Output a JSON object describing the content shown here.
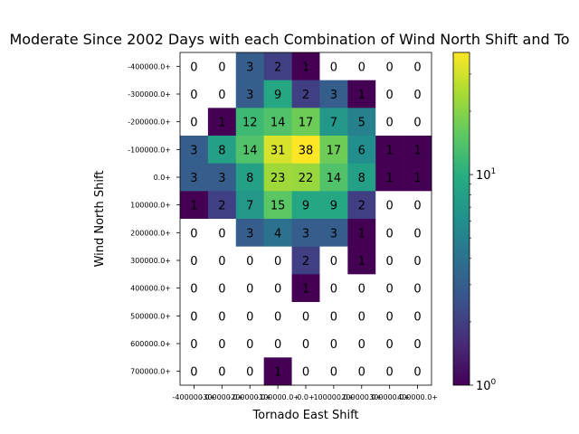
{
  "chart_data": {
    "type": "heatmap",
    "title": "Moderate Since 2002 Days with each Combination of Wind North Shift and To",
    "xlabel": "Tornado East Shift",
    "ylabel": "Wind North Shift",
    "x_categories": [
      "-400000.0+",
      "-300000.0+",
      "-200000.0+",
      "-100000.0+",
      "0.0+",
      "100000.0+",
      "200000.0+",
      "300000.0+",
      "400000.0+"
    ],
    "y_categories": [
      "-400000.0+",
      "-300000.0+",
      "-200000.0+",
      "-100000.0+",
      "0.0+",
      "100000.0+",
      "200000.0+",
      "300000.0+",
      "400000.0+",
      "500000.0+",
      "600000.0+",
      "700000.0+"
    ],
    "values": [
      [
        0,
        0,
        3,
        2,
        1,
        0,
        0,
        0,
        0
      ],
      [
        0,
        0,
        3,
        9,
        2,
        3,
        1,
        0,
        0
      ],
      [
        0,
        1,
        12,
        14,
        17,
        7,
        5,
        0,
        0
      ],
      [
        3,
        8,
        14,
        31,
        38,
        17,
        6,
        1,
        1
      ],
      [
        3,
        3,
        8,
        23,
        22,
        14,
        8,
        1,
        1
      ],
      [
        1,
        2,
        7,
        15,
        9,
        9,
        2,
        0,
        0
      ],
      [
        0,
        0,
        3,
        4,
        3,
        3,
        1,
        0,
        0
      ],
      [
        0,
        0,
        0,
        0,
        2,
        0,
        1,
        0,
        0
      ],
      [
        0,
        0,
        0,
        0,
        1,
        0,
        0,
        0,
        0
      ],
      [
        0,
        0,
        0,
        0,
        0,
        0,
        0,
        0,
        0
      ],
      [
        0,
        0,
        0,
        0,
        0,
        0,
        0,
        0,
        0
      ],
      [
        0,
        0,
        0,
        1,
        0,
        0,
        0,
        0,
        0
      ]
    ],
    "color_scale": "log",
    "colormap": "viridis",
    "zero_color": "#ffffff",
    "colorbar": {
      "range": [
        1,
        38
      ],
      "tick_labels": [
        {
          "value": 1,
          "base": "10",
          "exp": "0"
        },
        {
          "value": 10,
          "base": "10",
          "exp": "1"
        }
      ]
    },
    "grid": false
  }
}
